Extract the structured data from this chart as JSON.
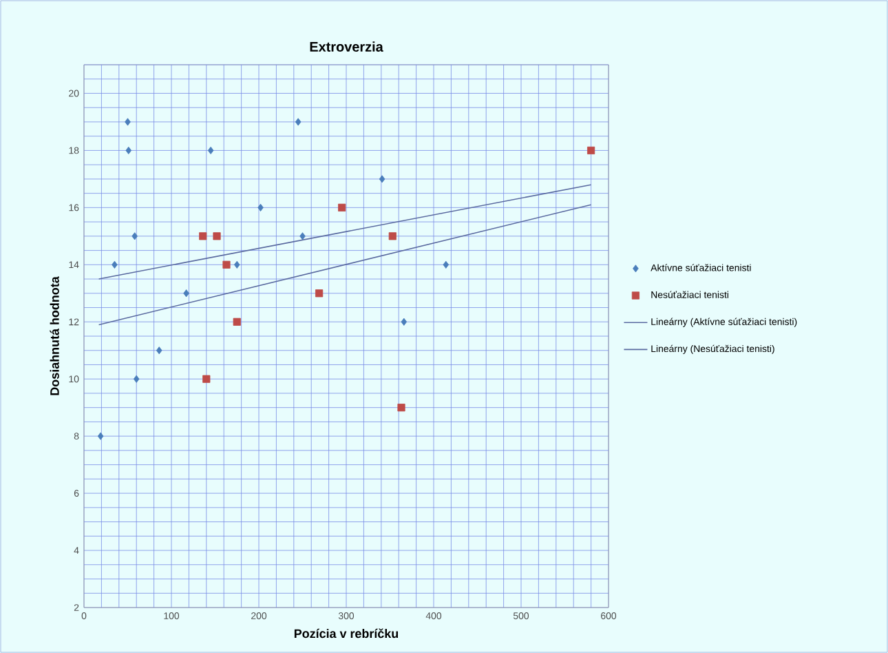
{
  "chart_data": {
    "type": "scatter",
    "title": "Extroverzia",
    "xlabel": "Pozícia v rebríčku",
    "ylabel": "Dosiahnutá hodnota",
    "xlim": [
      0,
      600
    ],
    "xticks": [
      0,
      {
        "value": 20,
        "label": null
      },
      {
        "value": 40,
        "label": null
      },
      {
        "value": 60,
        "label": null
      },
      {
        "value": 80,
        "label": null
      },
      100,
      {
        "value": 120,
        "label": null
      },
      {
        "value": 140,
        "label": null
      },
      {
        "value": 160,
        "label": null
      },
      {
        "value": 180,
        "label": null
      },
      200,
      {
        "value": 220,
        "label": null
      },
      {
        "value": 240,
        "label": null
      },
      {
        "value": 260,
        "label": null
      },
      {
        "value": 280,
        "label": null
      },
      300,
      {
        "value": 320,
        "label": null
      },
      {
        "value": 340,
        "label": null
      },
      {
        "value": 360,
        "label": null
      },
      {
        "value": 380,
        "label": null
      },
      400,
      {
        "value": 420,
        "label": null
      },
      {
        "value": 440,
        "label": null
      },
      {
        "value": 460,
        "label": null
      },
      {
        "value": 480,
        "label": null
      },
      500,
      {
        "value": 520,
        "label": null
      },
      {
        "value": 540,
        "label": null
      },
      {
        "value": 560,
        "label": null
      },
      {
        "value": 580,
        "label": null
      },
      600
    ],
    "ylim": [
      2,
      21
    ],
    "yticks": [
      2,
      {
        "value": 2.5,
        "label": null
      },
      {
        "value": 3,
        "label": null
      },
      {
        "value": 3.5,
        "label": null
      },
      4,
      {
        "value": 4.5,
        "label": null
      },
      {
        "value": 5,
        "label": null
      },
      {
        "value": 5.5,
        "label": null
      },
      6,
      {
        "value": 6.5,
        "label": null
      },
      {
        "value": 7,
        "label": null
      },
      {
        "value": 7.5,
        "label": null
      },
      8,
      {
        "value": 8.5,
        "label": null
      },
      {
        "value": 9,
        "label": null
      },
      {
        "value": 9.5,
        "label": null
      },
      10,
      {
        "value": 10.5,
        "label": null
      },
      {
        "value": 11,
        "label": null
      },
      {
        "value": 11.5,
        "label": null
      },
      12,
      {
        "value": 12.5,
        "label": null
      },
      {
        "value": 13,
        "label": null
      },
      {
        "value": 13.5,
        "label": null
      },
      14,
      {
        "value": 14.5,
        "label": null
      },
      {
        "value": 15,
        "label": null
      },
      {
        "value": 15.5,
        "label": null
      },
      16,
      {
        "value": 16.5,
        "label": null
      },
      {
        "value": 17,
        "label": null
      },
      {
        "value": 17.5,
        "label": null
      },
      18,
      {
        "value": 18.5,
        "label": null
      },
      {
        "value": 19,
        "label": null
      },
      {
        "value": 19.5,
        "label": null
      },
      20,
      {
        "value": 20.5,
        "label": null
      },
      {
        "value": 21,
        "label": null
      }
    ],
    "grid": true,
    "legend": "right",
    "series": [
      {
        "name": "Aktívne súťažiaci tenisti",
        "marker": "diamond",
        "color": "#4a7ebb",
        "x": [
          35,
          50,
          51,
          58,
          60,
          86,
          117,
          145,
          175,
          202,
          245,
          250,
          341,
          366,
          414,
          19
        ],
        "values": [
          14,
          19,
          18,
          15,
          10,
          11,
          13,
          18,
          14,
          16,
          19,
          15,
          17,
          12,
          14,
          8
        ]
      },
      {
        "name": "Nesúťažiaci tenisti",
        "marker": "square",
        "color": "#be4b48",
        "x": [
          136,
          152,
          163,
          175,
          140,
          269,
          295,
          353,
          363,
          580
        ],
        "values": [
          15,
          15,
          14,
          12,
          10,
          13,
          16,
          15,
          9,
          18
        ]
      },
      {
        "name": "Lineárny (Aktívne súťažiaci tenisti)",
        "type": "line",
        "marker": "none",
        "color": "#5a6aa0",
        "x": [
          17,
          580
        ],
        "values": [
          13.5,
          16.8
        ]
      },
      {
        "name": "Lineárny (Nesúťažiaci tenisti)",
        "type": "line",
        "marker": "none",
        "color": "#5a6aa0",
        "x": [
          17,
          580
        ],
        "values": [
          11.9,
          16.1
        ]
      }
    ]
  }
}
